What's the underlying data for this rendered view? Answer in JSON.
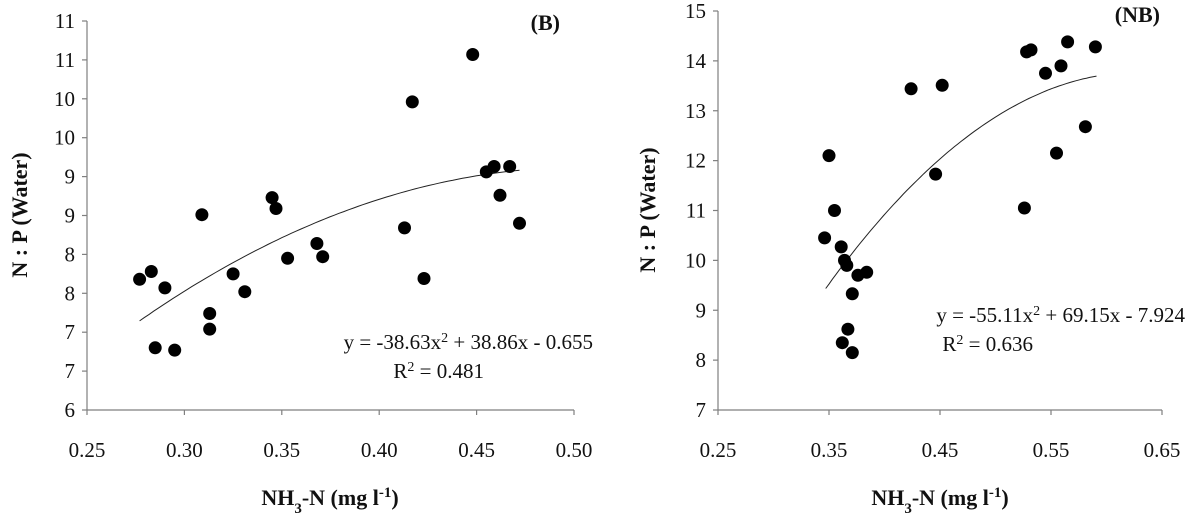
{
  "chart_data": [
    {
      "type": "scatter",
      "panel_label": "(B)",
      "xlabel": "NH3-N (mg l-1)",
      "xlabel_parts": {
        "pre": "NH",
        "sub": "3",
        "mid": "-N (mg l",
        "sup": "-1",
        "post": ")"
      },
      "ylabel": "N : P (Water)",
      "xlim": [
        0.25,
        0.5
      ],
      "ylim": [
        6,
        11
      ],
      "x_ticks": [
        "0.25",
        "0.30",
        "0.35",
        "0.40",
        "0.45",
        "0.50"
      ],
      "y_ticks": [
        "6",
        "7",
        "7",
        "8",
        "8",
        "9",
        "9",
        "10",
        "10",
        "11",
        "11"
      ],
      "grid": false,
      "trendline": {
        "type": "polynomial",
        "a": -38.63,
        "b": 38.86,
        "c": -0.655,
        "x_range": [
          0.277,
          0.472
        ]
      },
      "equation": {
        "pre": "y = -38.63x",
        "sup": "2",
        "post": "+ 38.86x - 0.655"
      },
      "r2": {
        "pre": "R",
        "sup": "2",
        "post": "= 0.481"
      },
      "points": [
        {
          "x": 0.277,
          "y": 7.68
        },
        {
          "x": 0.283,
          "y": 7.78
        },
        {
          "x": 0.285,
          "y": 6.8
        },
        {
          "x": 0.29,
          "y": 7.57
        },
        {
          "x": 0.295,
          "y": 6.77
        },
        {
          "x": 0.309,
          "y": 8.51
        },
        {
          "x": 0.313,
          "y": 7.24
        },
        {
          "x": 0.313,
          "y": 7.04
        },
        {
          "x": 0.325,
          "y": 7.75
        },
        {
          "x": 0.331,
          "y": 7.52
        },
        {
          "x": 0.345,
          "y": 8.73
        },
        {
          "x": 0.347,
          "y": 8.59
        },
        {
          "x": 0.353,
          "y": 7.95
        },
        {
          "x": 0.368,
          "y": 8.14
        },
        {
          "x": 0.371,
          "y": 7.97
        },
        {
          "x": 0.413,
          "y": 8.34
        },
        {
          "x": 0.417,
          "y": 9.96
        },
        {
          "x": 0.423,
          "y": 7.69
        },
        {
          "x": 0.448,
          "y": 10.57
        },
        {
          "x": 0.455,
          "y": 9.06
        },
        {
          "x": 0.459,
          "y": 9.13
        },
        {
          "x": 0.462,
          "y": 8.76
        },
        {
          "x": 0.467,
          "y": 9.13
        },
        {
          "x": 0.472,
          "y": 8.4
        }
      ]
    },
    {
      "type": "scatter",
      "panel_label": "(NB)",
      "xlabel": "NH3-N (mg l-1)",
      "xlabel_parts": {
        "pre": "NH",
        "sub": "3",
        "mid": "-N (mg l",
        "sup": "-1",
        "post": ")"
      },
      "ylabel": "N : P (Water)",
      "xlim": [
        0.25,
        0.65
      ],
      "ylim": [
        7,
        15
      ],
      "x_ticks": [
        "0.25",
        "0.35",
        "0.45",
        "0.55",
        "0.65"
      ],
      "y_ticks": [
        "7",
        "8",
        "9",
        "10",
        "11",
        "12",
        "13",
        "14",
        "15"
      ],
      "grid": false,
      "trendline": {
        "type": "polynomial",
        "a": -55.11,
        "b": 69.15,
        "c": -7.924,
        "x_range": [
          0.347,
          0.591
        ]
      },
      "equation": {
        "pre": "y = -55.11x",
        "sup": "2",
        "post": "+ 69.15x - 7.924"
      },
      "r2": {
        "pre": "R",
        "sup": "2",
        "post": "= 0.636"
      },
      "points": [
        {
          "x": 0.346,
          "y": 10.45
        },
        {
          "x": 0.35,
          "y": 12.1
        },
        {
          "x": 0.355,
          "y": 11.0
        },
        {
          "x": 0.361,
          "y": 10.27
        },
        {
          "x": 0.362,
          "y": 8.35
        },
        {
          "x": 0.364,
          "y": 10.0
        },
        {
          "x": 0.366,
          "y": 9.9
        },
        {
          "x": 0.367,
          "y": 8.62
        },
        {
          "x": 0.371,
          "y": 8.15
        },
        {
          "x": 0.371,
          "y": 9.33
        },
        {
          "x": 0.376,
          "y": 9.7
        },
        {
          "x": 0.384,
          "y": 9.76
        },
        {
          "x": 0.424,
          "y": 13.44
        },
        {
          "x": 0.446,
          "y": 11.73
        },
        {
          "x": 0.452,
          "y": 13.51
        },
        {
          "x": 0.526,
          "y": 11.05
        },
        {
          "x": 0.528,
          "y": 14.18
        },
        {
          "x": 0.532,
          "y": 14.22
        },
        {
          "x": 0.545,
          "y": 13.75
        },
        {
          "x": 0.555,
          "y": 12.15
        },
        {
          "x": 0.559,
          "y": 13.9
        },
        {
          "x": 0.565,
          "y": 14.38
        },
        {
          "x": 0.581,
          "y": 12.68
        },
        {
          "x": 0.59,
          "y": 14.28
        }
      ]
    }
  ]
}
